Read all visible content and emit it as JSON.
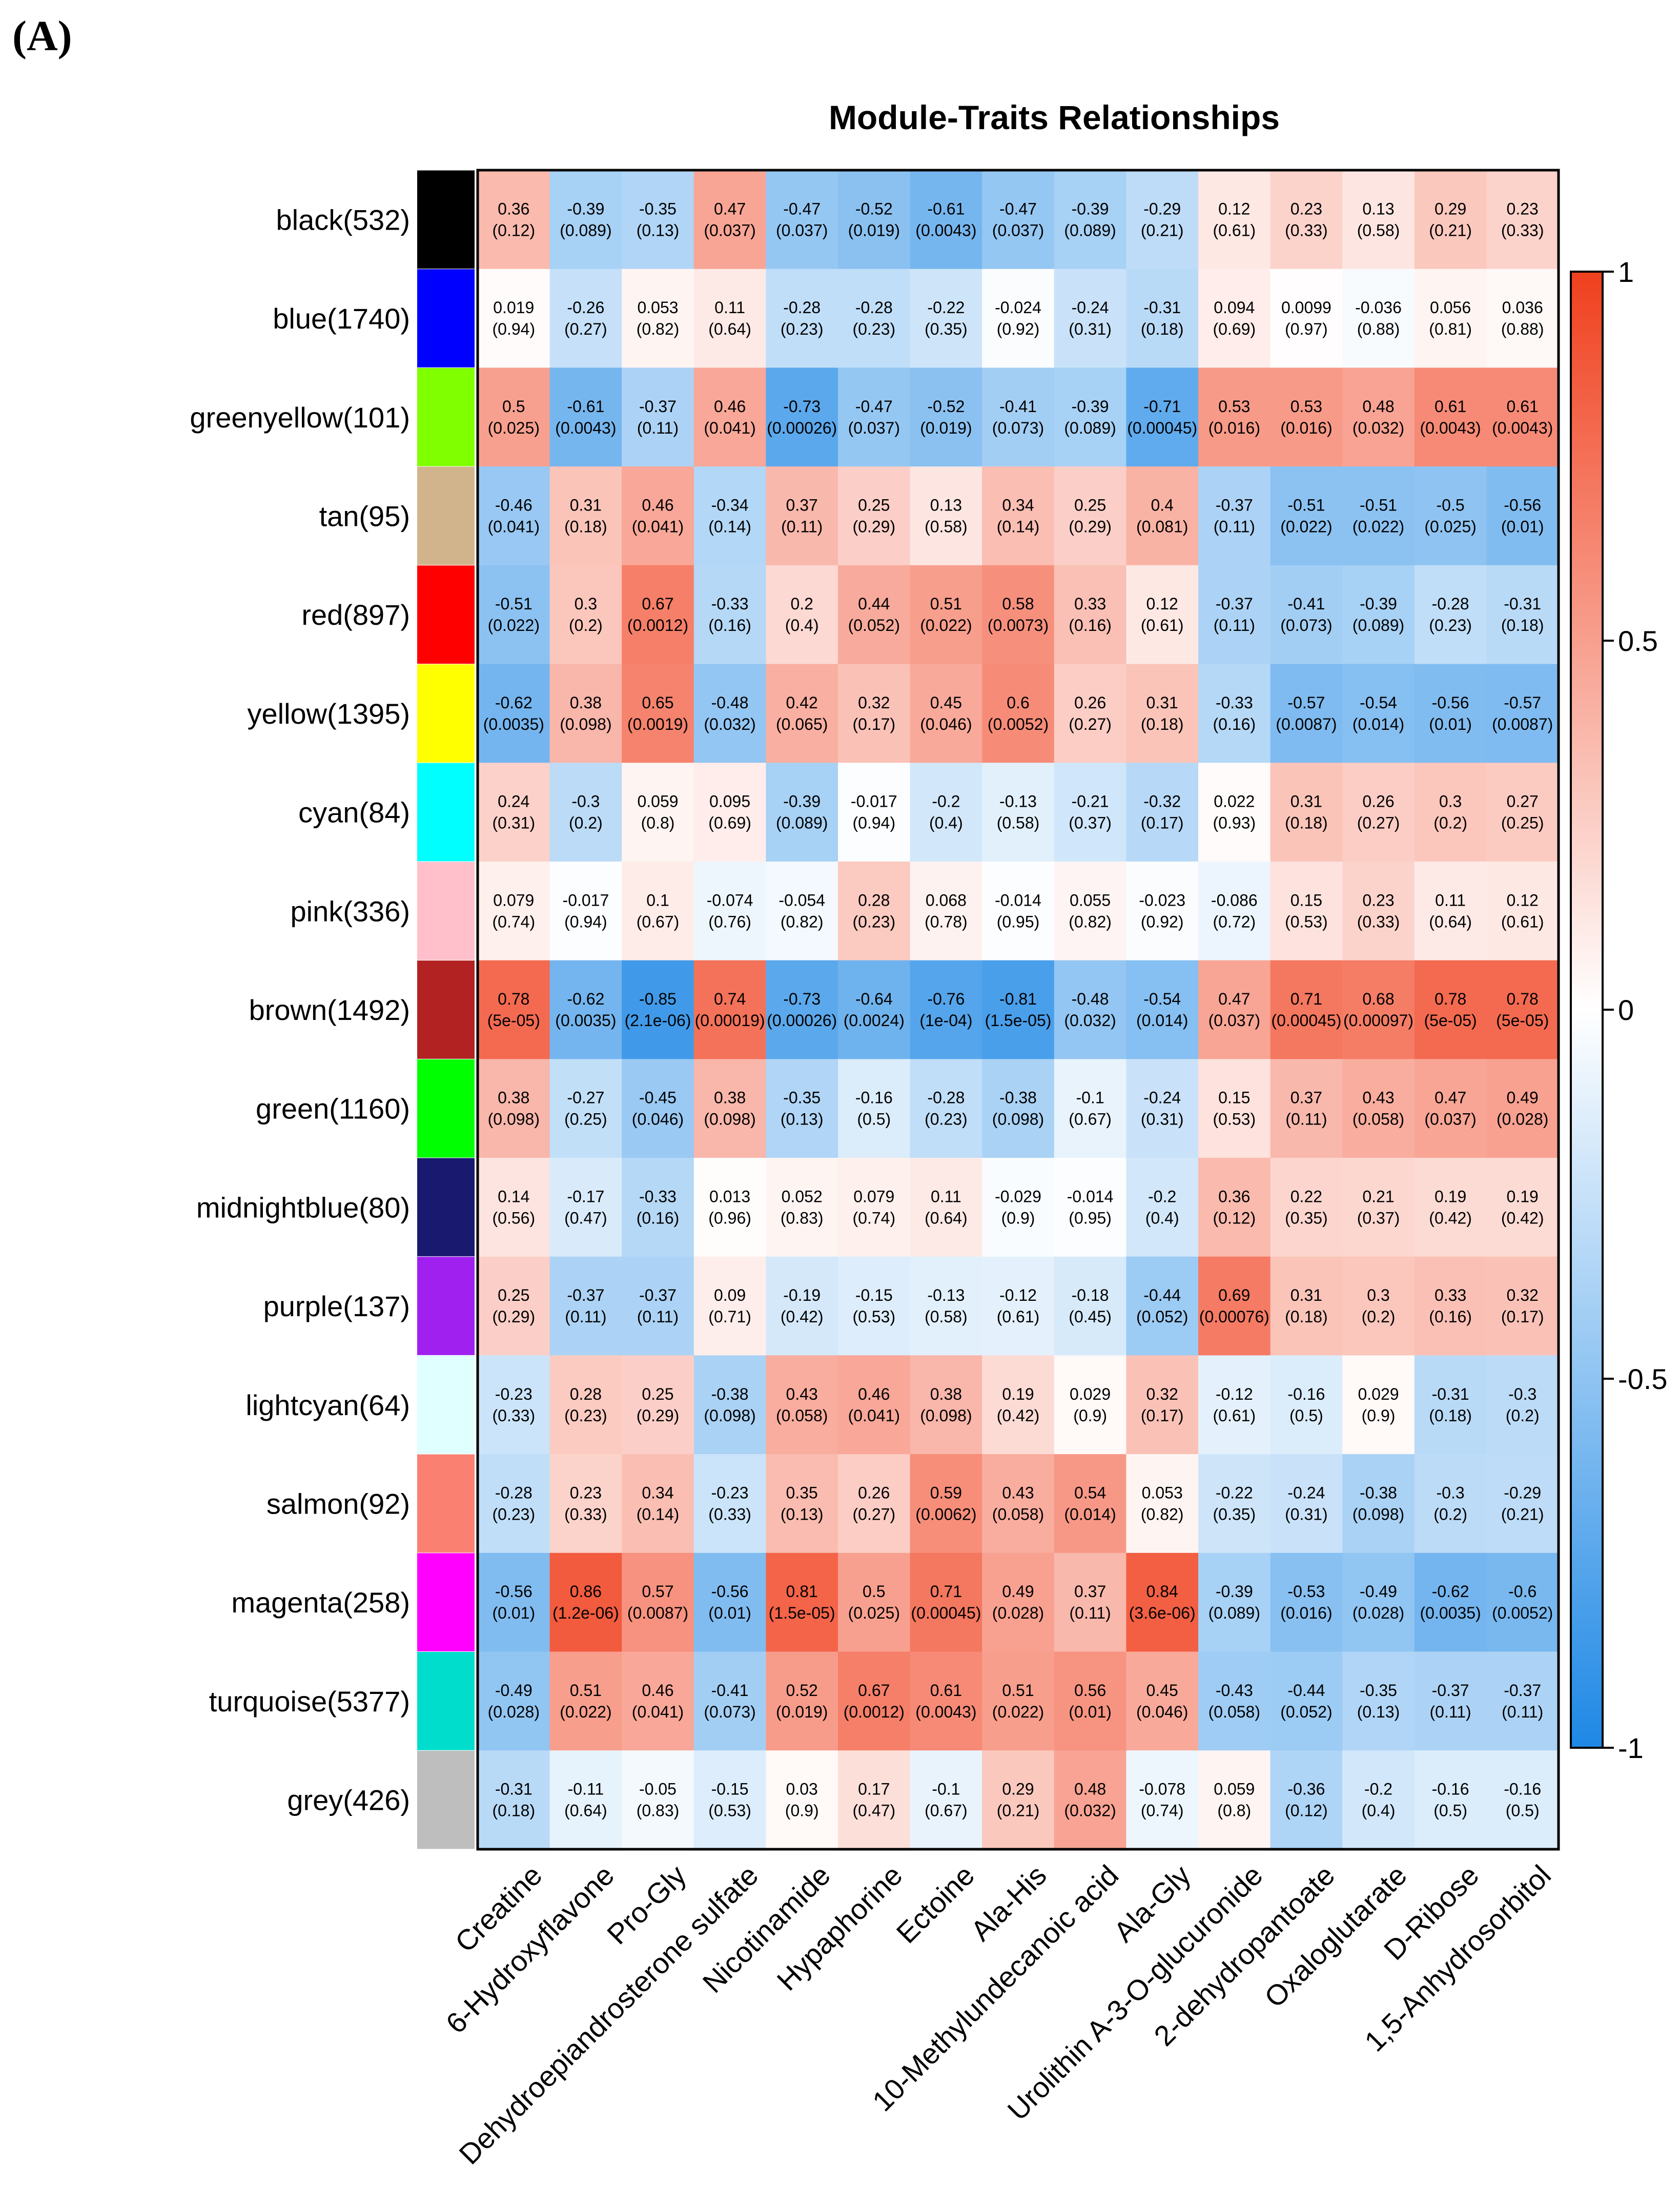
{
  "panel_label": "(A)",
  "chart_data": {
    "type": "heatmap",
    "title": "Module-Traits Relationships",
    "rows": [
      {
        "label": "black(532)",
        "color": "#000000"
      },
      {
        "label": "blue(1740)",
        "color": "#0000FF"
      },
      {
        "label": "greenyellow(101)",
        "color": "#7FFF00"
      },
      {
        "label": "tan(95)",
        "color": "#D2B48C"
      },
      {
        "label": "red(897)",
        "color": "#FF0000"
      },
      {
        "label": "yellow(1395)",
        "color": "#FFFF00"
      },
      {
        "label": "cyan(84)",
        "color": "#00FFFF"
      },
      {
        "label": "pink(336)",
        "color": "#FFC0CB"
      },
      {
        "label": "brown(1492)",
        "color": "#B22222"
      },
      {
        "label": "green(1160)",
        "color": "#00FF00"
      },
      {
        "label": "midnightblue(80)",
        "color": "#191970"
      },
      {
        "label": "purple(137)",
        "color": "#A020F0"
      },
      {
        "label": "lightcyan(64)",
        "color": "#E0FFFF"
      },
      {
        "label": "salmon(92)",
        "color": "#FA8072"
      },
      {
        "label": "magenta(258)",
        "color": "#FF00FF"
      },
      {
        "label": "turquoise(5377)",
        "color": "#00DDCC"
      },
      {
        "label": "grey(426)",
        "color": "#BEBEBE"
      }
    ],
    "columns": [
      "Creatine",
      "6-Hydroxyflavone",
      "Pro-Gly",
      "Dehydroepiandrosterone sulfate",
      "Nicotinamide",
      "Hypaphorine",
      "Ectoine",
      "Ala-His",
      "10-Methylundecanoic acid",
      "Ala-Gly",
      "Urolithin A-3-O-glucuronide",
      "2-dehydropantoate",
      "Oxaloglutarate",
      "D-Ribose",
      "1,5-Anhydrosorbitol"
    ],
    "correlations": [
      [
        "0.36",
        "-0.39",
        "-0.35",
        "0.47",
        "-0.47",
        "-0.52",
        "-0.61",
        "-0.47",
        "-0.39",
        "-0.29",
        "0.12",
        "0.23",
        "0.13",
        "0.29",
        "0.23"
      ],
      [
        "0.019",
        "-0.26",
        "0.053",
        "0.11",
        "-0.28",
        "-0.28",
        "-0.22",
        "-0.024",
        "-0.24",
        "-0.31",
        "0.094",
        "0.0099",
        "-0.036",
        "0.056",
        "0.036"
      ],
      [
        "0.5",
        "-0.61",
        "-0.37",
        "0.46",
        "-0.73",
        "-0.47",
        "-0.52",
        "-0.41",
        "-0.39",
        "-0.71",
        "0.53",
        "0.53",
        "0.48",
        "0.61",
        "0.61"
      ],
      [
        "-0.46",
        "0.31",
        "0.46",
        "-0.34",
        "0.37",
        "0.25",
        "0.13",
        "0.34",
        "0.25",
        "0.4",
        "-0.37",
        "-0.51",
        "-0.51",
        "-0.5",
        "-0.56"
      ],
      [
        "-0.51",
        "0.3",
        "0.67",
        "-0.33",
        "0.2",
        "0.44",
        "0.51",
        "0.58",
        "0.33",
        "0.12",
        "-0.37",
        "-0.41",
        "-0.39",
        "-0.28",
        "-0.31"
      ],
      [
        "-0.62",
        "0.38",
        "0.65",
        "-0.48",
        "0.42",
        "0.32",
        "0.45",
        "0.6",
        "0.26",
        "0.31",
        "-0.33",
        "-0.57",
        "-0.54",
        "-0.56",
        "-0.57"
      ],
      [
        "0.24",
        "-0.3",
        "0.059",
        "0.095",
        "-0.39",
        "-0.017",
        "-0.2",
        "-0.13",
        "-0.21",
        "-0.32",
        "0.022",
        "0.31",
        "0.26",
        "0.3",
        "0.27"
      ],
      [
        "0.079",
        "-0.017",
        "0.1",
        "-0.074",
        "-0.054",
        "0.28",
        "0.068",
        "-0.014",
        "0.055",
        "-0.023",
        "-0.086",
        "0.15",
        "0.23",
        "0.11",
        "0.12"
      ],
      [
        "0.78",
        "-0.62",
        "-0.85",
        "0.74",
        "-0.73",
        "-0.64",
        "-0.76",
        "-0.81",
        "-0.48",
        "-0.54",
        "0.47",
        "0.71",
        "0.68",
        "0.78",
        "0.78"
      ],
      [
        "0.38",
        "-0.27",
        "-0.45",
        "0.38",
        "-0.35",
        "-0.16",
        "-0.28",
        "-0.38",
        "-0.1",
        "-0.24",
        "0.15",
        "0.37",
        "0.43",
        "0.47",
        "0.49"
      ],
      [
        "0.14",
        "-0.17",
        "-0.33",
        "0.013",
        "0.052",
        "0.079",
        "0.11",
        "-0.029",
        "-0.014",
        "-0.2",
        "0.36",
        "0.22",
        "0.21",
        "0.19",
        "0.19"
      ],
      [
        "0.25",
        "-0.37",
        "-0.37",
        "0.09",
        "-0.19",
        "-0.15",
        "-0.13",
        "-0.12",
        "-0.18",
        "-0.44",
        "0.69",
        "0.31",
        "0.3",
        "0.33",
        "0.32"
      ],
      [
        "-0.23",
        "0.28",
        "0.25",
        "-0.38",
        "0.43",
        "0.46",
        "0.38",
        "0.19",
        "0.029",
        "0.32",
        "-0.12",
        "-0.16",
        "0.029",
        "-0.31",
        "-0.3"
      ],
      [
        "-0.28",
        "0.23",
        "0.34",
        "-0.23",
        "0.35",
        "0.26",
        "0.59",
        "0.43",
        "0.54",
        "0.053",
        "-0.22",
        "-0.24",
        "-0.38",
        "-0.3",
        "-0.29"
      ],
      [
        "-0.56",
        "0.86",
        "0.57",
        "-0.56",
        "0.81",
        "0.5",
        "0.71",
        "0.49",
        "0.37",
        "0.84",
        "-0.39",
        "-0.53",
        "-0.49",
        "-0.62",
        "-0.6"
      ],
      [
        "-0.49",
        "0.51",
        "0.46",
        "-0.41",
        "0.52",
        "0.67",
        "0.61",
        "0.51",
        "0.56",
        "0.45",
        "-0.43",
        "-0.44",
        "-0.35",
        "-0.37",
        "-0.37"
      ],
      [
        "-0.31",
        "-0.11",
        "-0.05",
        "-0.15",
        "0.03",
        "0.17",
        "-0.1",
        "0.29",
        "0.48",
        "-0.078",
        "0.059",
        "-0.36",
        "-0.2",
        "-0.16",
        "-0.16"
      ]
    ],
    "pvalues": [
      [
        "(0.12)",
        "(0.089)",
        "(0.13)",
        "(0.037)",
        "(0.037)",
        "(0.019)",
        "(0.0043)",
        "(0.037)",
        "(0.089)",
        "(0.21)",
        "(0.61)",
        "(0.33)",
        "(0.58)",
        "(0.21)",
        "(0.33)"
      ],
      [
        "(0.94)",
        "(0.27)",
        "(0.82)",
        "(0.64)",
        "(0.23)",
        "(0.23)",
        "(0.35)",
        "(0.92)",
        "(0.31)",
        "(0.18)",
        "(0.69)",
        "(0.97)",
        "(0.88)",
        "(0.81)",
        "(0.88)"
      ],
      [
        "(0.025)",
        "(0.0043)",
        "(0.11)",
        "(0.041)",
        "(0.00026)",
        "(0.037)",
        "(0.019)",
        "(0.073)",
        "(0.089)",
        "(0.00045)",
        "(0.016)",
        "(0.016)",
        "(0.032)",
        "(0.0043)",
        "(0.0043)"
      ],
      [
        "(0.041)",
        "(0.18)",
        "(0.041)",
        "(0.14)",
        "(0.11)",
        "(0.29)",
        "(0.58)",
        "(0.14)",
        "(0.29)",
        "(0.081)",
        "(0.11)",
        "(0.022)",
        "(0.022)",
        "(0.025)",
        "(0.01)"
      ],
      [
        "(0.022)",
        "(0.2)",
        "(0.0012)",
        "(0.16)",
        "(0.4)",
        "(0.052)",
        "(0.022)",
        "(0.0073)",
        "(0.16)",
        "(0.61)",
        "(0.11)",
        "(0.073)",
        "(0.089)",
        "(0.23)",
        "(0.18)"
      ],
      [
        "(0.0035)",
        "(0.098)",
        "(0.0019)",
        "(0.032)",
        "(0.065)",
        "(0.17)",
        "(0.046)",
        "(0.0052)",
        "(0.27)",
        "(0.18)",
        "(0.16)",
        "(0.0087)",
        "(0.014)",
        "(0.01)",
        "(0.0087)"
      ],
      [
        "(0.31)",
        "(0.2)",
        "(0.8)",
        "(0.69)",
        "(0.089)",
        "(0.94)",
        "(0.4)",
        "(0.58)",
        "(0.37)",
        "(0.17)",
        "(0.93)",
        "(0.18)",
        "(0.27)",
        "(0.2)",
        "(0.25)"
      ],
      [
        "(0.74)",
        "(0.94)",
        "(0.67)",
        "(0.76)",
        "(0.82)",
        "(0.23)",
        "(0.78)",
        "(0.95)",
        "(0.82)",
        "(0.92)",
        "(0.72)",
        "(0.53)",
        "(0.33)",
        "(0.64)",
        "(0.61)"
      ],
      [
        "(5e-05)",
        "(0.0035)",
        "(2.1e-06)",
        "(0.00019)",
        "(0.00026)",
        "(0.0024)",
        "(1e-04)",
        "(1.5e-05)",
        "(0.032)",
        "(0.014)",
        "(0.037)",
        "(0.00045)",
        "(0.00097)",
        "(5e-05)",
        "(5e-05)"
      ],
      [
        "(0.098)",
        "(0.25)",
        "(0.046)",
        "(0.098)",
        "(0.13)",
        "(0.5)",
        "(0.23)",
        "(0.098)",
        "(0.67)",
        "(0.31)",
        "(0.53)",
        "(0.11)",
        "(0.058)",
        "(0.037)",
        "(0.028)"
      ],
      [
        "(0.56)",
        "(0.47)",
        "(0.16)",
        "(0.96)",
        "(0.83)",
        "(0.74)",
        "(0.64)",
        "(0.9)",
        "(0.95)",
        "(0.4)",
        "(0.12)",
        "(0.35)",
        "(0.37)",
        "(0.42)",
        "(0.42)"
      ],
      [
        "(0.29)",
        "(0.11)",
        "(0.11)",
        "(0.71)",
        "(0.42)",
        "(0.53)",
        "(0.58)",
        "(0.61)",
        "(0.45)",
        "(0.052)",
        "(0.00076)",
        "(0.18)",
        "(0.2)",
        "(0.16)",
        "(0.17)"
      ],
      [
        "(0.33)",
        "(0.23)",
        "(0.29)",
        "(0.098)",
        "(0.058)",
        "(0.041)",
        "(0.098)",
        "(0.42)",
        "(0.9)",
        "(0.17)",
        "(0.61)",
        "(0.5)",
        "(0.9)",
        "(0.18)",
        "(0.2)"
      ],
      [
        "(0.23)",
        "(0.33)",
        "(0.14)",
        "(0.33)",
        "(0.13)",
        "(0.27)",
        "(0.0062)",
        "(0.058)",
        "(0.014)",
        "(0.82)",
        "(0.35)",
        "(0.31)",
        "(0.098)",
        "(0.2)",
        "(0.21)"
      ],
      [
        "(0.01)",
        "(1.2e-06)",
        "(0.0087)",
        "(0.01)",
        "(1.5e-05)",
        "(0.025)",
        "(0.00045)",
        "(0.028)",
        "(0.11)",
        "(3.6e-06)",
        "(0.089)",
        "(0.016)",
        "(0.028)",
        "(0.0035)",
        "(0.0052)"
      ],
      [
        "(0.028)",
        "(0.022)",
        "(0.041)",
        "(0.073)",
        "(0.019)",
        "(0.0012)",
        "(0.0043)",
        "(0.022)",
        "(0.01)",
        "(0.046)",
        "(0.058)",
        "(0.052)",
        "(0.13)",
        "(0.11)",
        "(0.11)"
      ],
      [
        "(0.18)",
        "(0.64)",
        "(0.83)",
        "(0.53)",
        "(0.9)",
        "(0.47)",
        "(0.67)",
        "(0.21)",
        "(0.032)",
        "(0.74)",
        "(0.8)",
        "(0.12)",
        "(0.4)",
        "(0.5)",
        "(0.5)"
      ]
    ],
    "colorbar": {
      "range": [
        -1,
        1
      ],
      "ticks": [
        {
          "value": 1,
          "label": "1"
        },
        {
          "value": 0.5,
          "label": "0.5"
        },
        {
          "value": 0,
          "label": "0"
        },
        {
          "value": -0.5,
          "label": "-0.5"
        },
        {
          "value": -1,
          "label": "-1"
        }
      ],
      "colors": {
        "negative": "#1E88E5",
        "zero": "#FFFFFF",
        "positive": "#F0401E"
      }
    }
  }
}
